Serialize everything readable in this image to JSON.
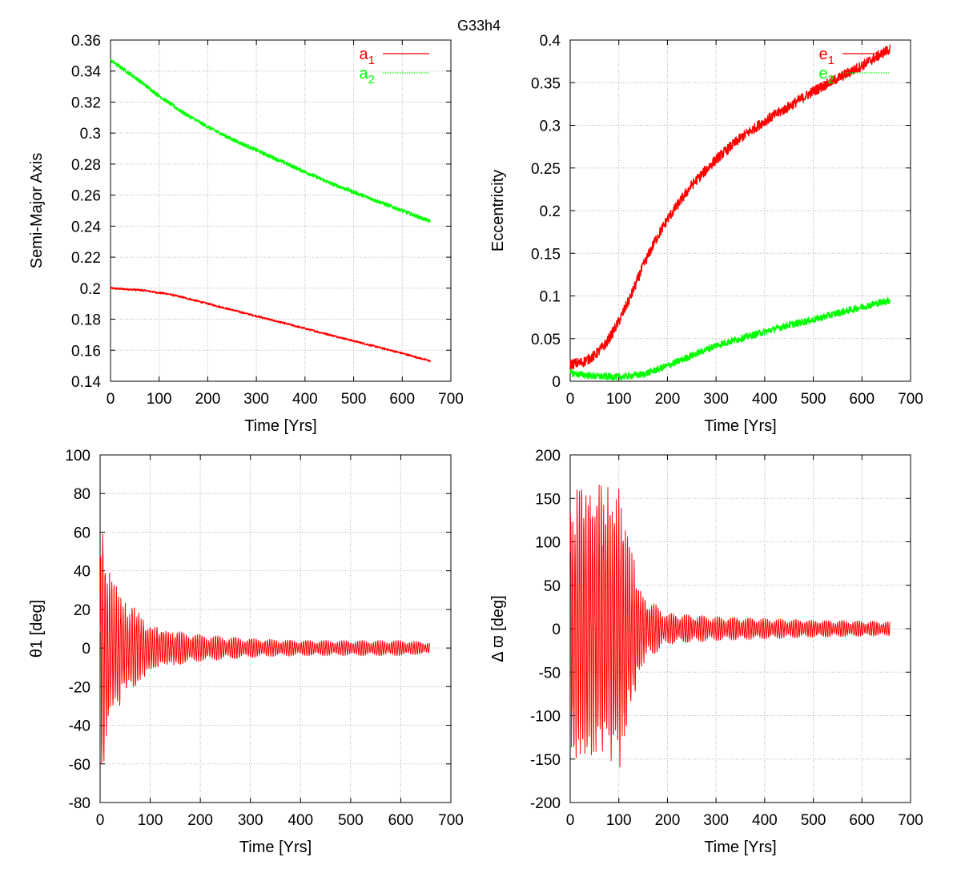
{
  "suptitle": "G33h4",
  "colors": {
    "red": "#ff0000",
    "green": "#00ff00",
    "grid": "#b0b0b0"
  },
  "chart_data": [
    {
      "type": "line",
      "xlabel": "Time [Yrs]",
      "ylabel": "Semi-Major Axis",
      "xlim": [
        0,
        700
      ],
      "ylim": [
        0.14,
        0.36
      ],
      "xticks": [
        "0",
        "100",
        "200",
        "300",
        "400",
        "500",
        "600",
        "700"
      ],
      "yticks": [
        "0.14",
        "0.16",
        "0.18",
        "0.2",
        "0.22",
        "0.24",
        "0.26",
        "0.28",
        "0.3",
        "0.32",
        "0.34",
        "0.36"
      ],
      "grid": true,
      "legend_position": "top-right",
      "series": [
        {
          "name": "a1",
          "color": "#ff0000",
          "style": "solid",
          "x": [
            0,
            50,
            70,
            100,
            115,
            150,
            200,
            250,
            300,
            350,
            400,
            450,
            500,
            550,
            600,
            658
          ],
          "y": [
            0.2,
            0.199,
            0.1985,
            0.197,
            0.1965,
            0.194,
            0.19,
            0.186,
            0.182,
            0.178,
            0.174,
            0.17,
            0.166,
            0.162,
            0.158,
            0.153
          ],
          "noise": 0.0006
        },
        {
          "name": "a2",
          "color": "#00ff00",
          "style": "dotted",
          "x": [
            0,
            50,
            100,
            150,
            200,
            250,
            300,
            350,
            400,
            450,
            500,
            550,
            600,
            658
          ],
          "y": [
            0.347,
            0.336,
            0.324,
            0.313,
            0.304,
            0.296,
            0.289,
            0.282,
            0.275,
            0.268,
            0.262,
            0.256,
            0.25,
            0.243
          ],
          "noise": 0.0012
        }
      ]
    },
    {
      "type": "line",
      "xlabel": "Time [Yrs]",
      "ylabel": "Eccentricity",
      "xlim": [
        0,
        700
      ],
      "ylim": [
        0,
        0.4
      ],
      "xticks": [
        "0",
        "100",
        "200",
        "300",
        "400",
        "500",
        "600",
        "700"
      ],
      "yticks": [
        "0",
        "0.05",
        "0.1",
        "0.15",
        "0.2",
        "0.25",
        "0.3",
        "0.35",
        "0.4"
      ],
      "grid": true,
      "legend_position": "top-right",
      "series": [
        {
          "name": "e1",
          "color": "#ff0000",
          "style": "solid",
          "x": [
            0,
            25,
            50,
            75,
            100,
            125,
            150,
            175,
            200,
            250,
            300,
            350,
            400,
            450,
            500,
            550,
            600,
            658
          ],
          "y": [
            0.02,
            0.022,
            0.03,
            0.045,
            0.07,
            0.1,
            0.135,
            0.165,
            0.19,
            0.23,
            0.26,
            0.285,
            0.305,
            0.322,
            0.34,
            0.355,
            0.37,
            0.39
          ],
          "noise": 0.006
        },
        {
          "name": "e2",
          "color": "#00ff00",
          "style": "dotted",
          "x": [
            0,
            20,
            50,
            100,
            150,
            200,
            250,
            300,
            350,
            400,
            450,
            500,
            550,
            600,
            658
          ],
          "y": [
            0.01,
            0.008,
            0.006,
            0.005,
            0.008,
            0.018,
            0.03,
            0.042,
            0.05,
            0.058,
            0.066,
            0.072,
            0.08,
            0.087,
            0.095
          ],
          "noise": 0.004
        }
      ]
    },
    {
      "type": "line",
      "xlabel": "Time [Yrs]",
      "ylabel": "θ1   [deg]",
      "xlim": [
        0,
        700
      ],
      "ylim": [
        -80,
        100
      ],
      "xticks": [
        "0",
        "100",
        "200",
        "300",
        "400",
        "500",
        "600",
        "700"
      ],
      "yticks": [
        "-80",
        "-60",
        "-40",
        "-20",
        "0",
        "20",
        "40",
        "60",
        "80",
        "100"
      ],
      "grid": true,
      "series": [
        {
          "name": "",
          "color": "#ff0000",
          "style": "solid",
          "x": [
            0,
            3,
            10,
            20,
            40,
            60,
            80,
            100,
            150,
            200,
            300,
            400,
            500,
            600,
            658
          ],
          "amplitude": [
            40,
            80,
            60,
            40,
            30,
            24,
            18,
            12,
            9,
            7,
            5,
            4,
            4,
            4,
            3
          ],
          "center": 0,
          "min_period": 4.5,
          "slow_period": 36
        }
      ]
    },
    {
      "type": "line",
      "xlabel": "Time [Yrs]",
      "ylabel": "Δ ϖ   [deg]",
      "xlim": [
        0,
        700
      ],
      "ylim": [
        -200,
        200
      ],
      "xticks": [
        "0",
        "100",
        "200",
        "300",
        "400",
        "500",
        "600",
        "700"
      ],
      "yticks": [
        "-200",
        "-150",
        "-100",
        "-50",
        "0",
        "50",
        "100",
        "150",
        "200"
      ],
      "grid": true,
      "series": [
        {
          "name": "",
          "color": "#ff0000",
          "style": "solid",
          "x": [
            0,
            30,
            60,
            100,
            120,
            140,
            160,
            200,
            300,
            400,
            500,
            600,
            658
          ],
          "amplitude": [
            170,
            175,
            170,
            175,
            110,
            60,
            35,
            18,
            14,
            12,
            10,
            9,
            8
          ],
          "center": 0,
          "min_period": 4.5,
          "slow_period": 32
        }
      ]
    }
  ]
}
